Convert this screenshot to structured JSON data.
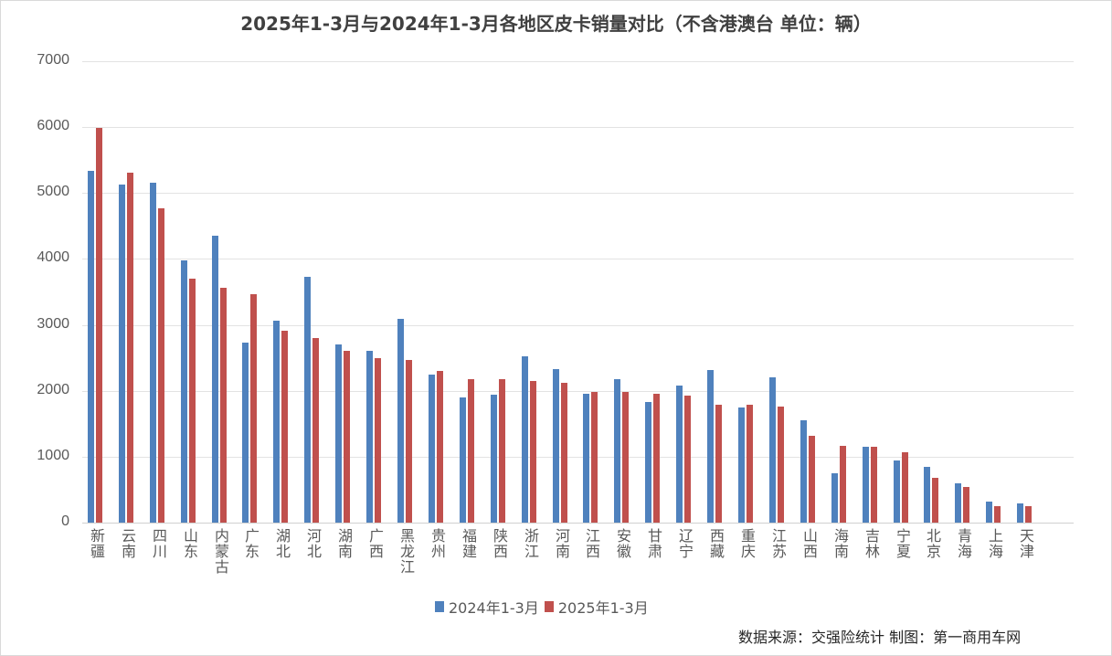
{
  "chart_data": {
    "type": "bar",
    "title": "2025年1-3月与2024年1-3月各地区皮卡销量对比（不含港澳台 单位：辆）",
    "xlabel": "",
    "ylabel": "",
    "ylim": [
      0,
      7000
    ],
    "yticks": [
      0,
      1000,
      2000,
      3000,
      4000,
      5000,
      6000,
      7000
    ],
    "grid": true,
    "legend_position": "bottom",
    "categories": [
      "新疆",
      "云南",
      "四川",
      "山东",
      "内蒙古",
      "广东",
      "湖北",
      "河北",
      "湖南",
      "广西",
      "黑龙江",
      "贵州",
      "福建",
      "陕西",
      "浙江",
      "河南",
      "江西",
      "安徽",
      "甘肃",
      "辽宁",
      "西藏",
      "重庆",
      "江苏",
      "山西",
      "海南",
      "吉林",
      "宁夏",
      "北京",
      "青海",
      "上海",
      "天津"
    ],
    "series": [
      {
        "name": "2024年1-3月",
        "color": "#4f81bd",
        "values": [
          5330,
          5130,
          5160,
          3980,
          4350,
          2730,
          3060,
          3730,
          2700,
          2610,
          3090,
          2250,
          1900,
          1940,
          2520,
          2330,
          1960,
          2170,
          1830,
          2080,
          2320,
          1740,
          2200,
          1550,
          750,
          1150,
          940,
          850,
          600,
          320,
          290
        ]
      },
      {
        "name": "2025年1-3月",
        "color": "#c0504d",
        "values": [
          5990,
          5310,
          4770,
          3700,
          3560,
          3470,
          2910,
          2800,
          2610,
          2500,
          2470,
          2300,
          2180,
          2180,
          2150,
          2120,
          1980,
          1980,
          1960,
          1930,
          1790,
          1790,
          1760,
          1320,
          1170,
          1150,
          1070,
          680,
          540,
          250,
          250
        ]
      }
    ],
    "source_note": "数据来源：交强险统计 制图：第一商用车网"
  },
  "legend": {
    "items": [
      {
        "label": "2024年1-3月",
        "color": "#4f81bd"
      },
      {
        "label": "2025年1-3月",
        "color": "#c0504d"
      }
    ]
  },
  "footer": {
    "source": "数据来源：交强险统计 制图：第一商用车网"
  }
}
